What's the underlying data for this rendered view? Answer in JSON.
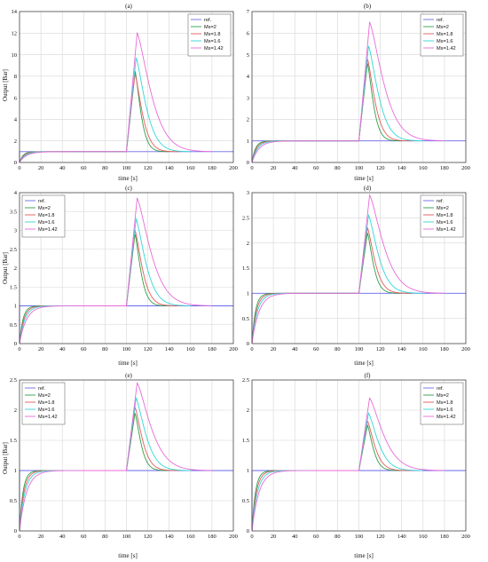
{
  "figure": {
    "panels": [
      {
        "label": "(a)",
        "ylabel": "Output [Bar]",
        "xlabel": "time [s]"
      },
      {
        "label": "(b)",
        "ylabel": "",
        "xlabel": "time [s]"
      },
      {
        "label": "(c)",
        "ylabel": "Output [Bar]",
        "xlabel": "time [s]"
      },
      {
        "label": "(d)",
        "ylabel": "",
        "xlabel": "time [s]"
      },
      {
        "label": "(e)",
        "ylabel": "Output [Bar]",
        "xlabel": "time [s]"
      },
      {
        "label": "(f)",
        "ylabel": "",
        "xlabel": "time [s]"
      }
    ]
  },
  "chart_data": [
    {
      "panel": "(a)",
      "type": "line",
      "xlabel": "time [s]",
      "ylabel": "Output [Bar]",
      "xlim": [
        0,
        200
      ],
      "ylim": [
        0,
        14
      ],
      "xticks": [
        0,
        20,
        40,
        60,
        80,
        100,
        120,
        140,
        160,
        180,
        200
      ],
      "yticks": [
        0,
        2,
        4,
        6,
        8,
        10,
        12,
        14
      ],
      "grid": true,
      "legend_position": "top-right",
      "series": [
        {
          "name": "ref.",
          "color": "#6a6ae8",
          "kind": "step",
          "final": 1
        },
        {
          "name": "Ms=2",
          "color": "#2e9e4a",
          "tau": 3.2,
          "disturbance_peak": 8.5,
          "peak_time": 108,
          "decay": 7,
          "settle_end": 140
        },
        {
          "name": "Ms=1.8",
          "color": "#e35a5a",
          "tau": 4.0,
          "disturbance_peak": 8.2,
          "peak_time": 108,
          "decay": 9,
          "settle_end": 150
        },
        {
          "name": "Ms=1.6",
          "color": "#33d6d6",
          "tau": 5.0,
          "disturbance_peak": 9.7,
          "peak_time": 109,
          "decay": 12,
          "settle_end": 160
        },
        {
          "name": "Ms=1.42",
          "color": "#e86ad8",
          "tau": 6.5,
          "disturbance_peak": 12.0,
          "peak_time": 110,
          "decay": 17,
          "settle_end": 180
        }
      ]
    },
    {
      "panel": "(b)",
      "type": "line",
      "xlabel": "time [s]",
      "ylabel": "",
      "xlim": [
        0,
        200
      ],
      "ylim": [
        0,
        7
      ],
      "xticks": [
        0,
        20,
        40,
        60,
        80,
        100,
        120,
        140,
        160,
        180,
        200
      ],
      "yticks": [
        0,
        1,
        2,
        3,
        4,
        5,
        6,
        7
      ],
      "grid": true,
      "legend_position": "top-right",
      "series": [
        {
          "name": "ref.",
          "color": "#6a6ae8",
          "kind": "step",
          "final": 1
        },
        {
          "name": "Ms=2",
          "color": "#2e9e4a",
          "tau": 3.2,
          "disturbance_peak": 4.6,
          "peak_time": 108,
          "decay": 7,
          "settle_end": 140
        },
        {
          "name": "Ms=1.8",
          "color": "#e35a5a",
          "tau": 4.0,
          "disturbance_peak": 4.8,
          "peak_time": 108,
          "decay": 9,
          "settle_end": 150
        },
        {
          "name": "Ms=1.6",
          "color": "#33d6d6",
          "tau": 5.0,
          "disturbance_peak": 5.4,
          "peak_time": 109,
          "decay": 12,
          "settle_end": 160
        },
        {
          "name": "Ms=1.42",
          "color": "#e86ad8",
          "tau": 6.5,
          "disturbance_peak": 6.5,
          "peak_time": 110,
          "decay": 17,
          "settle_end": 180
        }
      ]
    },
    {
      "panel": "(c)",
      "type": "line",
      "xlabel": "time [s]",
      "ylabel": "Output [Bar]",
      "xlim": [
        0,
        200
      ],
      "ylim": [
        0,
        4
      ],
      "xticks": [
        0,
        20,
        40,
        60,
        80,
        100,
        120,
        140,
        160,
        180,
        200
      ],
      "yticks": [
        0,
        0.5,
        1,
        1.5,
        2,
        2.5,
        3,
        3.5,
        4
      ],
      "grid": true,
      "legend_position": "top-left",
      "series": [
        {
          "name": "ref.",
          "color": "#6a6ae8",
          "kind": "step",
          "final": 1
        },
        {
          "name": "Ms=2",
          "color": "#2e9e4a",
          "tau": 3.2,
          "disturbance_peak": 2.9,
          "peak_time": 108,
          "decay": 7,
          "settle_end": 140
        },
        {
          "name": "Ms=1.8",
          "color": "#e35a5a",
          "tau": 4.0,
          "disturbance_peak": 3.0,
          "peak_time": 108,
          "decay": 9,
          "settle_end": 150
        },
        {
          "name": "Ms=1.6",
          "color": "#33d6d6",
          "tau": 5.0,
          "disturbance_peak": 3.3,
          "peak_time": 109,
          "decay": 12,
          "settle_end": 160
        },
        {
          "name": "Ms=1.42",
          "color": "#e86ad8",
          "tau": 6.5,
          "disturbance_peak": 3.85,
          "peak_time": 110,
          "decay": 17,
          "settle_end": 180
        }
      ]
    },
    {
      "panel": "(d)",
      "type": "line",
      "xlabel": "time [s]",
      "ylabel": "",
      "xlim": [
        0,
        200
      ],
      "ylim": [
        0,
        3
      ],
      "xticks": [
        0,
        20,
        40,
        60,
        80,
        100,
        120,
        140,
        160,
        180,
        200
      ],
      "yticks": [
        0,
        0.5,
        1,
        1.5,
        2,
        2.5,
        3
      ],
      "grid": true,
      "legend_position": "top-right",
      "series": [
        {
          "name": "ref.",
          "color": "#6a6ae8",
          "kind": "step",
          "final": 1
        },
        {
          "name": "Ms=2",
          "color": "#2e9e4a",
          "tau": 3.2,
          "disturbance_peak": 2.2,
          "peak_time": 108,
          "decay": 7,
          "settle_end": 140
        },
        {
          "name": "Ms=1.8",
          "color": "#e35a5a",
          "tau": 4.0,
          "disturbance_peak": 2.3,
          "peak_time": 108,
          "decay": 9,
          "settle_end": 150
        },
        {
          "name": "Ms=1.6",
          "color": "#33d6d6",
          "tau": 5.0,
          "disturbance_peak": 2.55,
          "peak_time": 109,
          "decay": 12,
          "settle_end": 160
        },
        {
          "name": "Ms=1.42",
          "color": "#e86ad8",
          "tau": 6.5,
          "disturbance_peak": 2.95,
          "peak_time": 110,
          "decay": 17,
          "settle_end": 180
        }
      ]
    },
    {
      "panel": "(e)",
      "type": "line",
      "xlabel": "time [s]",
      "ylabel": "Output [Bar]",
      "xlim": [
        0,
        200
      ],
      "ylim": [
        0,
        2.5
      ],
      "xticks": [
        0,
        20,
        40,
        60,
        80,
        100,
        120,
        140,
        160,
        180,
        200
      ],
      "yticks": [
        0,
        0.5,
        1,
        1.5,
        2,
        2.5
      ],
      "grid": true,
      "legend_position": "top-left",
      "series": [
        {
          "name": "ref.",
          "color": "#6a6ae8",
          "kind": "step",
          "final": 1
        },
        {
          "name": "Ms=2",
          "color": "#2e9e4a",
          "tau": 3.2,
          "disturbance_peak": 1.95,
          "peak_time": 108,
          "decay": 7,
          "settle_end": 140
        },
        {
          "name": "Ms=1.8",
          "color": "#e35a5a",
          "tau": 4.0,
          "disturbance_peak": 2.05,
          "peak_time": 108,
          "decay": 9,
          "settle_end": 150
        },
        {
          "name": "Ms=1.6",
          "color": "#33d6d6",
          "tau": 5.0,
          "disturbance_peak": 2.2,
          "peak_time": 109,
          "decay": 12,
          "settle_end": 160
        },
        {
          "name": "Ms=1.42",
          "color": "#e86ad8",
          "tau": 6.5,
          "disturbance_peak": 2.45,
          "peak_time": 110,
          "decay": 17,
          "settle_end": 180
        }
      ]
    },
    {
      "panel": "(f)",
      "type": "line",
      "xlabel": "time [s]",
      "ylabel": "",
      "xlim": [
        0,
        200
      ],
      "ylim": [
        0,
        2.5
      ],
      "xticks": [
        0,
        20,
        40,
        60,
        80,
        100,
        120,
        140,
        160,
        180,
        200
      ],
      "yticks": [
        0,
        0.5,
        1,
        1.5,
        2,
        2.5
      ],
      "grid": true,
      "legend_position": "top-right",
      "series": [
        {
          "name": "ref.",
          "color": "#6a6ae8",
          "kind": "step",
          "final": 1
        },
        {
          "name": "Ms=2",
          "color": "#2e9e4a",
          "tau": 3.2,
          "disturbance_peak": 1.75,
          "peak_time": 108,
          "decay": 7,
          "settle_end": 140
        },
        {
          "name": "Ms=1.8",
          "color": "#e35a5a",
          "tau": 4.0,
          "disturbance_peak": 1.82,
          "peak_time": 108,
          "decay": 9,
          "settle_end": 150
        },
        {
          "name": "Ms=1.6",
          "color": "#33d6d6",
          "tau": 5.0,
          "disturbance_peak": 1.95,
          "peak_time": 109,
          "decay": 12,
          "settle_end": 160
        },
        {
          "name": "Ms=1.42",
          "color": "#e86ad8",
          "tau": 6.5,
          "disturbance_peak": 2.2,
          "peak_time": 110,
          "decay": 17,
          "settle_end": 180
        }
      ]
    }
  ]
}
